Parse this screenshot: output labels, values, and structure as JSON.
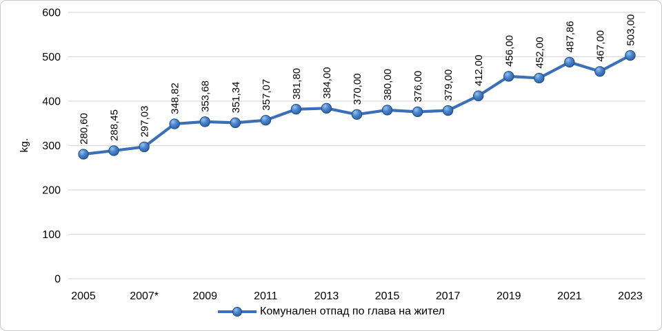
{
  "chart_data": {
    "type": "line",
    "title": "",
    "ylabel": "kg.",
    "xlabel": "",
    "ylim": [
      0,
      600
    ],
    "ytick_step": 100,
    "grid": true,
    "legend_position": "bottom",
    "x": [
      2005,
      2006,
      2007,
      2008,
      2009,
      2010,
      2011,
      2012,
      2013,
      2014,
      2015,
      2016,
      2017,
      2018,
      2019,
      2020,
      2021,
      2022,
      2023
    ],
    "x_tick_labels": [
      "2005",
      "2007*",
      "2009",
      "2011",
      "2013",
      "2015",
      "2017",
      "2019",
      "2021",
      "2023"
    ],
    "series": [
      {
        "name": "Комунален отпад по глава на жител",
        "values": [
          280.6,
          288.45,
          297.03,
          348.82,
          353.68,
          351.34,
          357.07,
          381.8,
          384.0,
          370.0,
          380.0,
          376.0,
          379.0,
          412.0,
          456.0,
          452.0,
          487.86,
          467.0,
          503.0
        ],
        "point_labels": [
          "280,60",
          "288,45",
          "297,03",
          "348,82",
          "353,68",
          "351,34",
          "357,07",
          "381,80",
          "384,00",
          "370,00",
          "380,00",
          "376,00",
          "379,00",
          "412,00",
          "456,00",
          "452,00",
          "487,86",
          "467,00",
          "503,00"
        ]
      }
    ],
    "colors": {
      "line": "#3b70b8",
      "marker_fill_light": "#9cc3ee",
      "marker_fill_mid": "#4a86ce",
      "marker_fill_dark": "#2b5ea7",
      "marker_border": "#1f4e79",
      "grid": "#d9d9d9",
      "text": "#000000"
    }
  }
}
